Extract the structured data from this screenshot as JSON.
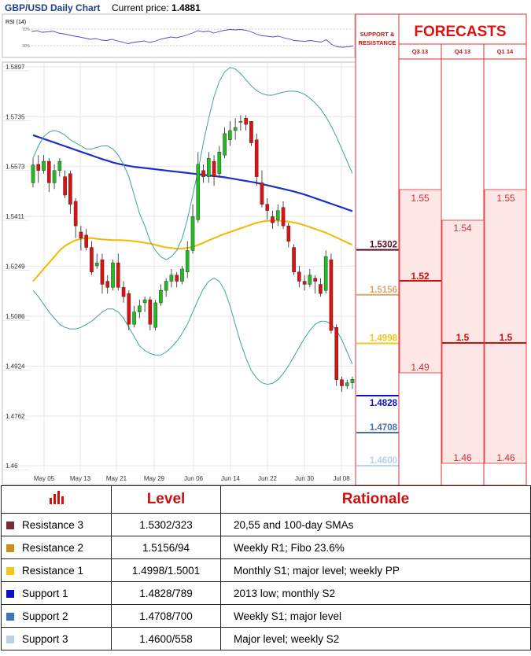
{
  "header": {
    "title": "GBP/USD Daily Chart",
    "current_price_label": "Current price:",
    "current_price": "1.4881"
  },
  "rsi_panel": {
    "label": "RSI (14)",
    "tick_70": "70%",
    "tick_30": "30%"
  },
  "panel_headers": {
    "support_resistance": [
      "SUPPORT &",
      "RESISTANCE"
    ],
    "forecasts": "FORECASTS",
    "quarters": [
      "Q3 13",
      "Q4 13",
      "Q1 14"
    ]
  },
  "colors": {
    "bull_candle": "#22bb22",
    "bear_candle": "#dd1111",
    "sma_blue": "#1c2fc8",
    "sma_orange": "#f5b800",
    "bollinger": "#3aa59a",
    "forecast_fill": "#fde6e6",
    "forecast_line": "#cc1111",
    "title_blue": "#1f3f8f"
  },
  "chart_data": {
    "type": "candlestick",
    "title": "GBP/USD Daily Chart",
    "y_ticks": [
      1.5897,
      1.5735,
      1.5573,
      1.5411,
      1.5249,
      1.5086,
      1.4924,
      1.4762,
      1.46
    ],
    "ylim": [
      1.458,
      1.5897
    ],
    "x_tick_labels": [
      "May 05",
      "May 13",
      "May 21",
      "May 29",
      "Jun 06",
      "Jun 14",
      "Jun 22",
      "Jun 30",
      "Jul 08"
    ],
    "candles": [
      [
        1.552,
        1.5578,
        1.5505,
        1.56
      ],
      [
        1.558,
        1.556,
        1.552,
        1.561
      ],
      [
        1.556,
        1.559,
        1.555,
        1.561
      ],
      [
        1.559,
        1.552,
        1.549,
        1.56
      ],
      [
        1.552,
        1.556,
        1.55,
        1.558
      ],
      [
        1.556,
        1.559,
        1.554,
        1.56
      ],
      [
        1.554,
        1.548,
        1.547,
        1.556
      ],
      [
        1.555,
        1.545,
        1.542,
        1.556
      ],
      [
        1.546,
        1.538,
        1.534,
        1.547
      ],
      [
        1.536,
        1.534,
        1.53,
        1.538
      ],
      [
        1.535,
        1.531,
        1.53,
        1.537
      ],
      [
        1.531,
        1.523,
        1.522,
        1.533
      ],
      [
        1.525,
        1.526,
        1.524,
        1.529
      ],
      [
        1.527,
        1.519,
        1.516,
        1.529
      ],
      [
        1.52,
        1.518,
        1.516,
        1.522
      ],
      [
        1.518,
        1.526,
        1.517,
        1.527
      ],
      [
        1.526,
        1.518,
        1.517,
        1.529
      ],
      [
        1.518,
        1.515,
        1.513,
        1.52
      ],
      [
        1.516,
        1.506,
        1.504,
        1.517
      ],
      [
        1.506,
        1.51,
        1.505,
        1.512
      ],
      [
        1.51,
        1.512,
        1.508,
        1.514
      ],
      [
        1.513,
        1.514,
        1.51,
        1.515
      ],
      [
        1.514,
        1.506,
        1.504,
        1.515
      ],
      [
        1.505,
        1.513,
        1.504,
        1.514
      ],
      [
        1.513,
        1.517,
        1.512,
        1.519
      ],
      [
        1.517,
        1.52,
        1.515,
        1.521
      ],
      [
        1.52,
        1.522,
        1.518,
        1.524
      ],
      [
        1.522,
        1.52,
        1.518,
        1.523
      ],
      [
        1.52,
        1.524,
        1.519,
        1.525
      ],
      [
        1.523,
        1.53,
        1.521,
        1.533
      ],
      [
        1.53,
        1.541,
        1.529,
        1.545
      ],
      [
        1.54,
        1.558,
        1.539,
        1.562
      ],
      [
        1.556,
        1.554,
        1.552,
        1.558
      ],
      [
        1.554,
        1.56,
        1.552,
        1.562
      ],
      [
        1.559,
        1.554,
        1.551,
        1.561
      ],
      [
        1.555,
        1.562,
        1.554,
        1.564
      ],
      [
        1.561,
        1.568,
        1.56,
        1.57
      ],
      [
        1.566,
        1.569,
        1.564,
        1.572
      ],
      [
        1.569,
        1.57,
        1.566,
        1.573
      ],
      [
        1.572,
        1.572,
        1.569,
        1.574
      ],
      [
        1.573,
        1.571,
        1.569,
        1.574
      ],
      [
        1.572,
        1.565,
        1.564,
        1.572
      ],
      [
        1.566,
        1.554,
        1.551,
        1.568
      ],
      [
        1.552,
        1.545,
        1.544,
        1.556
      ],
      [
        1.545,
        1.543,
        1.54,
        1.547
      ],
      [
        1.541,
        1.539,
        1.537,
        1.543
      ],
      [
        1.54,
        1.543,
        1.538,
        1.545
      ],
      [
        1.544,
        1.538,
        1.537,
        1.546
      ],
      [
        1.538,
        1.533,
        1.531,
        1.539
      ],
      [
        1.531,
        1.523,
        1.522,
        1.532
      ],
      [
        1.523,
        1.52,
        1.518,
        1.525
      ],
      [
        1.52,
        1.519,
        1.517,
        1.522
      ],
      [
        1.519,
        1.522,
        1.518,
        1.524
      ],
      [
        1.521,
        1.52,
        1.516,
        1.522
      ],
      [
        1.519,
        1.516,
        1.515,
        1.521
      ],
      [
        1.517,
        1.528,
        1.516,
        1.53
      ],
      [
        1.527,
        1.504,
        1.503,
        1.529
      ],
      [
        1.505,
        1.488,
        1.486,
        1.506
      ],
      [
        1.488,
        1.486,
        1.484,
        1.489
      ],
      [
        1.486,
        1.487,
        1.485,
        1.488
      ],
      [
        1.487,
        1.4881,
        1.485,
        1.489
      ]
    ],
    "series": [
      {
        "name": "",
        "values": [
          1.5675,
          1.5669,
          1.5663,
          1.5657,
          1.5651,
          1.5645,
          1.5639,
          1.5633,
          1.5627,
          1.5621,
          1.5615,
          1.5609,
          1.5603,
          1.5597,
          1.5592,
          1.5586,
          1.5582,
          1.5578,
          1.5575,
          1.5572,
          1.557,
          1.5568,
          1.5566,
          1.5564,
          1.5562,
          1.556,
          1.5558,
          1.5556,
          1.5554,
          1.5552,
          1.555,
          1.5548,
          1.5546,
          1.5544,
          1.5542,
          1.554,
          1.5538,
          1.5535,
          1.5532,
          1.5529,
          1.5526,
          1.5523,
          1.552,
          1.5516,
          1.5512,
          1.5508,
          1.5504,
          1.55,
          1.5496,
          1.5492,
          1.5487,
          1.5482,
          1.5476,
          1.547,
          1.5464,
          1.5458,
          1.5452,
          1.5446,
          1.544,
          1.5434,
          1.5428
        ]
      },
      {
        "name": "",
        "values": [
          1.52,
          1.522,
          1.524,
          1.526,
          1.528,
          1.53,
          1.5315,
          1.5325,
          1.5333,
          1.5338,
          1.534,
          1.534,
          1.5338,
          1.5336,
          1.5335,
          1.5334,
          1.5334,
          1.5333,
          1.5332,
          1.533,
          1.5328,
          1.5325,
          1.5322,
          1.5318,
          1.5314,
          1.531,
          1.5308,
          1.5306,
          1.5306,
          1.5308,
          1.5312,
          1.5318,
          1.5325,
          1.5333,
          1.534,
          1.5347,
          1.5354,
          1.536,
          1.5366,
          1.5372,
          1.5378,
          1.5384,
          1.539,
          1.5394,
          1.5396,
          1.5397,
          1.5397,
          1.5396,
          1.5394,
          1.5391,
          1.5387,
          1.5382,
          1.5376,
          1.537,
          1.5364,
          1.5358,
          1.535,
          1.5342,
          1.5334,
          1.5326,
          1.5318
        ]
      },
      {
        "name": "",
        "values": [
          1.56,
          1.564,
          1.567,
          1.5685,
          1.569,
          1.5685,
          1.5675,
          1.566,
          1.565,
          1.564,
          1.563,
          1.563,
          1.5635,
          1.564,
          1.564,
          1.563,
          1.561,
          1.558,
          1.554,
          1.548,
          1.542,
          1.538,
          1.533,
          1.53,
          1.528,
          1.527,
          1.528,
          1.53,
          1.534,
          1.54,
          1.548,
          1.556,
          1.565,
          1.573,
          1.58,
          1.585,
          1.588,
          1.5895,
          1.589,
          1.5875,
          1.5855,
          1.5835,
          1.582,
          1.581,
          1.5805,
          1.5805,
          1.581,
          1.5815,
          1.5818,
          1.5818,
          1.5815,
          1.5808,
          1.5795,
          1.578,
          1.576,
          1.5735,
          1.5705,
          1.567,
          1.563,
          1.559,
          1.555
        ]
      },
      {
        "name": "",
        "values": [
          1.517,
          1.515,
          1.5125,
          1.51,
          1.508,
          1.506,
          1.505,
          1.5045,
          1.5045,
          1.505,
          1.506,
          1.507,
          1.5085,
          1.51,
          1.511,
          1.511,
          1.51,
          1.508,
          1.505,
          1.502,
          1.499,
          1.4975,
          1.4965,
          1.496,
          1.496,
          1.497,
          1.4985,
          1.5005,
          1.503,
          1.506,
          1.51,
          1.514,
          1.5175,
          1.52,
          1.521,
          1.52,
          1.517,
          1.512,
          1.506,
          1.5,
          1.495,
          1.491,
          1.4885,
          1.487,
          1.4865,
          1.4868,
          1.488,
          1.49,
          1.4925,
          1.4955,
          1.4985,
          1.5015,
          1.504,
          1.506,
          1.507,
          1.507,
          1.506,
          1.504,
          1.501,
          1.497,
          1.493
        ]
      }
    ],
    "rsi_values": [
      64,
      66,
      62,
      63,
      65,
      60,
      58,
      55,
      52,
      50,
      47,
      44,
      46,
      42,
      41,
      44,
      40,
      37,
      33,
      36,
      38,
      40,
      36,
      39,
      44,
      47,
      50,
      48,
      51,
      55,
      60,
      66,
      63,
      65,
      60,
      64,
      67,
      69,
      68,
      69,
      67,
      63,
      57,
      53,
      52,
      50,
      52,
      48,
      45,
      41,
      40,
      39,
      41,
      39,
      37,
      43,
      31,
      25,
      24,
      25,
      27
    ]
  },
  "support_resistance": [
    {
      "value": "1.5302",
      "color": "#5a1020"
    },
    {
      "value": "1.5156",
      "color": "#d8a86a"
    },
    {
      "value": "1.4998",
      "color": "#f5c518"
    },
    {
      "value": "1.4828",
      "color": "#1010c8"
    },
    {
      "value": "1.4708",
      "color": "#4a6fa8"
    },
    {
      "value": "1.4600",
      "color": "#b8d0e6"
    }
  ],
  "forecasts": {
    "q3_13": {
      "high": "1.55",
      "mid": "1.52",
      "low": "1.49"
    },
    "q4_13": {
      "high": "1.54",
      "mid": "1.5",
      "low": "1.46"
    },
    "q1_14": {
      "high": "1.55",
      "mid": "1.5",
      "low": "1.46"
    }
  },
  "levels_table": {
    "headers": {
      "level": "Level",
      "rationale": "Rationale"
    },
    "rows": [
      {
        "name": "Resistance 3",
        "level": "1.5302/323",
        "rationale": "20,55 and 100-day SMAs",
        "color": "#7a2a35"
      },
      {
        "name": "Resistance 2",
        "level": "1.5156/94",
        "rationale": "Weekly R1; Fibo 23.6%",
        "color": "#c89018"
      },
      {
        "name": "Resistance 1",
        "level": "1.4998/1.5001",
        "rationale": "Monthly S1;  major level; weekly PP",
        "color": "#f5c518"
      },
      {
        "name": "Support 1",
        "level": "1.4828/789",
        "rationale": "2013 low; monthly S2",
        "color": "#1010c8"
      },
      {
        "name": "Support 2",
        "level": "1.4708/700",
        "rationale": "Weekly S1; major level",
        "color": "#3a78b8"
      },
      {
        "name": "Support 3",
        "level": "1.4600/558",
        "rationale": "Major level; weekly S2",
        "color": "#b8d0e6"
      }
    ]
  }
}
